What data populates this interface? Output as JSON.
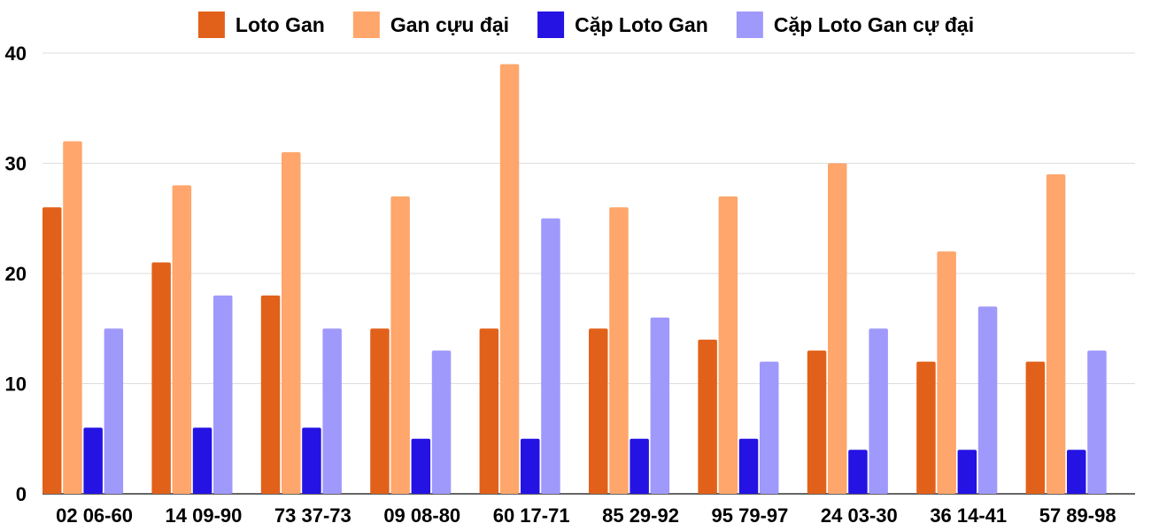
{
  "chart_data": {
    "type": "bar",
    "title": "",
    "xlabel": "",
    "ylabel": "",
    "ylim": [
      0,
      40
    ],
    "yticks": [
      0,
      10,
      20,
      30,
      40
    ],
    "grid": true,
    "legend_position": "top",
    "categories": [
      "02 06-60",
      "14 09-90",
      "73 37-73",
      "09 08-80",
      "60 17-71",
      "85 29-92",
      "95 79-97",
      "24 03-30",
      "36 14-41",
      "57 89-98"
    ],
    "series": [
      {
        "name": "Loto Gan",
        "color": "#e2611a",
        "values": [
          26,
          21,
          18,
          15,
          15,
          15,
          14,
          13,
          12,
          12
        ]
      },
      {
        "name": "Gan cựu đại",
        "color": "#fea66b",
        "values": [
          32,
          28,
          31,
          27,
          39,
          26,
          27,
          30,
          22,
          29
        ]
      },
      {
        "name": "Cặp Loto Gan",
        "color": "#2413e3",
        "values": [
          6,
          6,
          6,
          5,
          5,
          5,
          5,
          4,
          4,
          4
        ]
      },
      {
        "name": "Cặp Loto Gan cự đại",
        "color": "#a099fc",
        "values": [
          15,
          18,
          15,
          13,
          25,
          16,
          12,
          15,
          17,
          13
        ]
      }
    ]
  }
}
